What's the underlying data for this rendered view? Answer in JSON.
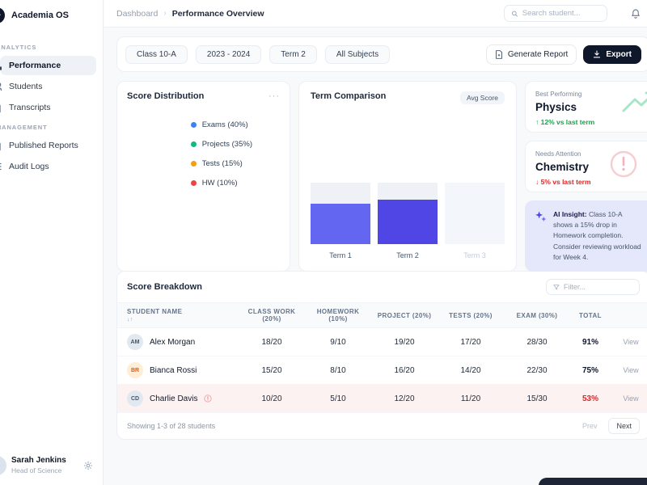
{
  "app": {
    "name": "Academia OS"
  },
  "sidebar": {
    "sections": [
      {
        "label": "ANALYTICS",
        "items": [
          {
            "label": "Performance"
          },
          {
            "label": "Students"
          },
          {
            "label": "Transcripts"
          }
        ]
      },
      {
        "label": "MANAGEMENT",
        "items": [
          {
            "label": "Published Reports"
          },
          {
            "label": "Audit Logs"
          }
        ]
      }
    ],
    "user": {
      "name": "Sarah Jenkins",
      "role": "Head of Science"
    }
  },
  "topbar": {
    "breadcrumb": {
      "parent": "Dashboard",
      "separator": "›",
      "current": "Performance Overview"
    },
    "search_placeholder": "Search student..."
  },
  "filters": {
    "chips": [
      "Class 10-A",
      "2023 - 2024",
      "Term 2",
      "All Subjects"
    ],
    "generate_report_label": "Generate Report",
    "export_label": "Export"
  },
  "score_distribution": {
    "title": "Score Distribution",
    "menu_label": "···",
    "chart_data": {
      "type": "pie",
      "labels": [
        "Exams",
        "Projects",
        "Tests",
        "HW"
      ],
      "values": [
        40,
        35,
        15,
        10
      ],
      "legend": [
        {
          "label": "Exams (40%)",
          "color": "#3b82f6"
        },
        {
          "label": "Projects (35%)",
          "color": "#10b981"
        },
        {
          "label": "Tests (15%)",
          "color": "#f59e0b"
        },
        {
          "label": "HW (10%)",
          "color": "#ef4444"
        }
      ]
    }
  },
  "term_comparison": {
    "title": "Term Comparison",
    "badge": "Avg Score",
    "chart_data": {
      "type": "bar",
      "categories": [
        "Term 1",
        "Term 2",
        "Term 3"
      ],
      "values": [
        65,
        72,
        0
      ],
      "colors": [
        "#6366f1",
        "#4f46e5",
        "transparent"
      ],
      "unit": "%",
      "ylim": [
        0,
        100
      ]
    }
  },
  "highlights": [
    {
      "label": "Best Performing",
      "subject": "Physics",
      "delta": "↑ 12% vs last term",
      "delta_color": "#16a34a"
    },
    {
      "label": "Needs Attention",
      "subject": "Chemistry",
      "delta": "↓ 5% vs last term",
      "delta_color": "#dc2626"
    }
  ],
  "ai_insight": {
    "title": "AI Insight:",
    "text": "Class 10-A shows a 15% drop in Homework completion. Consider reviewing workload for Week 4."
  },
  "score_breakdown": {
    "title": "Score Breakdown",
    "filter_placeholder": "Filter...",
    "sort_icon": "↓↑",
    "columns": [
      "STUDENT NAME",
      "CLASS WORK (20%)",
      "HOMEWORK (10%)",
      "PROJECT (20%)",
      "TESTS (20%)",
      "EXAM (30%)",
      "TOTAL"
    ],
    "rows": [
      {
        "initials": "AM",
        "name": "Alex Morgan",
        "avatar_bg": "#e2e8f0",
        "avatar_fg": "#475569",
        "scores": [
          "18/20",
          "9/10",
          "19/20",
          "17/20",
          "28/30"
        ],
        "total": "91%",
        "total_color": "#0f172a",
        "alert": false,
        "action": "View"
      },
      {
        "initials": "BR",
        "name": "Bianca Rossi",
        "avatar_bg": "#ffedd5",
        "avatar_fg": "#ea580c",
        "scores": [
          "15/20",
          "8/10",
          "16/20",
          "14/20",
          "22/30"
        ],
        "total": "75%",
        "total_color": "#0f172a",
        "alert": false,
        "action": "View"
      },
      {
        "initials": "CD",
        "name": "Charlie Davis",
        "avatar_bg": "#e2e8f0",
        "avatar_fg": "#475569",
        "scores": [
          "10/20",
          "5/10",
          "12/20",
          "11/20",
          "15/30"
        ],
        "total": "53%",
        "total_color": "#dc2626",
        "alert": true,
        "action": "View"
      }
    ],
    "footer": {
      "summary": "Showing 1-3 of 28 students",
      "prev": "Prev",
      "next": "Next"
    }
  }
}
